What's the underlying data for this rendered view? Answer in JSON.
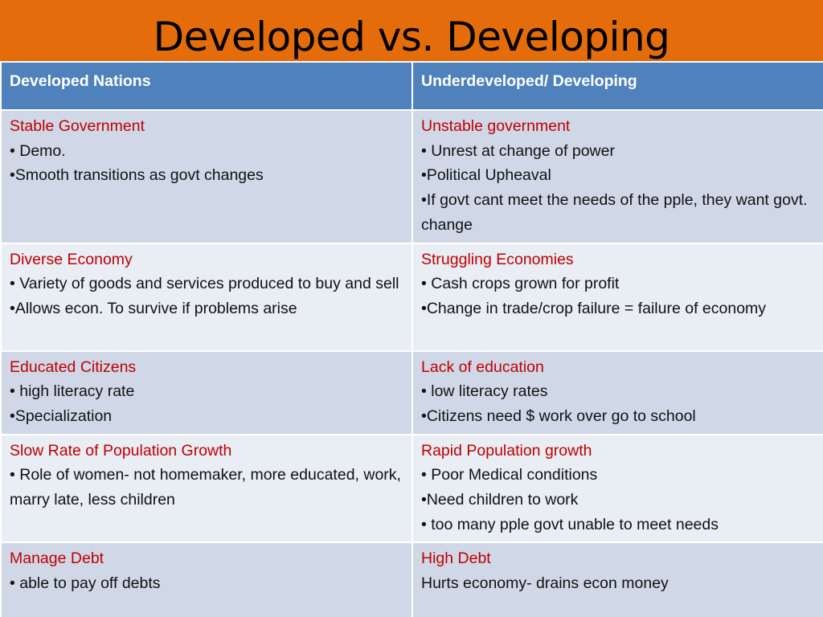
{
  "title": "Developed vs. Developing",
  "table": {
    "headers": [
      "Developed Nations",
      "Underdeveloped/ Developing"
    ],
    "rows": [
      {
        "left": {
          "heading": "Stable Government",
          "lines": [
            "• Demo.",
            "•Smooth transitions as govt changes"
          ]
        },
        "right": {
          "heading": "Unstable government",
          "lines": [
            "• Unrest at change of power",
            "•Political Upheaval",
            "•If govt cant meet the needs of the pple, they want govt. change"
          ]
        }
      },
      {
        "left": {
          "heading": "Diverse Economy",
          "lines": [
            "• Variety of goods and services produced to buy and sell",
            "•Allows econ. To survive if problems arise"
          ]
        },
        "right": {
          "heading": "Struggling Economies",
          "lines": [
            "• Cash crops grown for profit",
            "•Change in trade/crop failure =  failure of economy"
          ]
        }
      },
      {
        "left": {
          "heading": "Educated Citizens",
          "lines": [
            "• high literacy rate",
            "•Specialization"
          ]
        },
        "right": {
          "heading": "Lack of education",
          "lines": [
            "• low literacy rates",
            "•Citizens need $ work over go to school"
          ]
        }
      },
      {
        "left": {
          "heading": "Slow Rate of Population Growth",
          "lines": [
            "• Role of women- not homemaker, more educated, work, marry late, less children"
          ]
        },
        "right": {
          "heading": "Rapid Population growth",
          "lines": [
            "• Poor Medical conditions",
            "•Need children to work",
            "• too many pple govt unable to meet needs"
          ]
        }
      },
      {
        "left": {
          "heading": "Manage Debt",
          "lines": [
            "• able to pay off debts"
          ]
        },
        "right": {
          "heading": "High Debt",
          "lines": [
            "Hurts economy- drains econ money"
          ]
        }
      }
    ]
  },
  "colors": {
    "title_bar": "#e46c0a",
    "header_row": "#4f81bd",
    "row_odd": "#d0d8e8",
    "row_even": "#e9edf4",
    "heading_text": "#c00000"
  }
}
